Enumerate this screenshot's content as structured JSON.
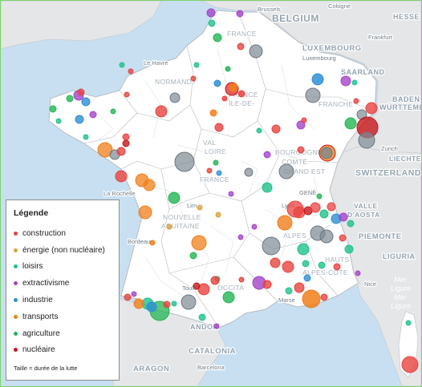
{
  "map": {
    "labels": {
      "countries": [
        {
          "id": "belgium",
          "text": "BELGIUM"
        },
        {
          "id": "luxembourg",
          "text": "LUXEMBOURG"
        },
        {
          "id": "hessen",
          "text": "HESSE"
        },
        {
          "id": "saarland",
          "text": "SAARLAND"
        },
        {
          "id": "baden",
          "text": "BADEN-"
        },
        {
          "id": "wurttemberg",
          "text": "WÜRTTEMBE"
        },
        {
          "id": "switzerland",
          "text": "SWITZERLAND"
        },
        {
          "id": "liechtenstein",
          "text": "LIECHTE"
        },
        {
          "id": "piemonte",
          "text": "PIEMONTE"
        },
        {
          "id": "liguria",
          "text": "LIGURIA"
        },
        {
          "id": "valle",
          "text": "VALLE"
        },
        {
          "id": "aosta",
          "text": "D'AOSTA"
        },
        {
          "id": "catalonia",
          "text": "CATALONIA"
        },
        {
          "id": "aragon",
          "text": "ARAGON"
        },
        {
          "id": "andorra",
          "text": "ANDOR"
        },
        {
          "id": "normandy",
          "text": "NORMANDY"
        },
        {
          "id": "france",
          "text": "FRANCE"
        },
        {
          "id": "nouvelle",
          "text": "NOUVELLE"
        },
        {
          "id": "aquitaine",
          "text": "AQUITAINE"
        },
        {
          "id": "val",
          "text": "VAL"
        },
        {
          "id": "loire",
          "text": "LOIRE"
        },
        {
          "id": "bourgogne",
          "text": "BOURGOGNE"
        },
        {
          "id": "franche",
          "text": "FRANCHE"
        },
        {
          "id": "comte",
          "text": "COMTÉ"
        },
        {
          "id": "grandest",
          "text": "GRAND EST"
        },
        {
          "id": "alpes",
          "text": "ALPES"
        },
        {
          "id": "cote",
          "text": "ALPES-CÔTE"
        },
        {
          "id": "occitanie",
          "text": "OCCITA"
        },
        {
          "id": "francem",
          "text": "FRANCE"
        },
        {
          "id": "ile",
          "text": "ÎLE-DE-"
        },
        {
          "id": "iledf",
          "text": "FRANCE"
        },
        {
          "id": "hauts",
          "text": "HAUTS"
        }
      ],
      "cities": [
        {
          "id": "brussels",
          "text": "Brussels"
        },
        {
          "id": "cologne",
          "text": "Cologne"
        },
        {
          "id": "frankfurt",
          "text": "Frankfurt"
        },
        {
          "id": "luxville",
          "text": "Luxembourg"
        },
        {
          "id": "zurich",
          "text": "Zurich"
        },
        {
          "id": "lehavre",
          "text": "Le Havre"
        },
        {
          "id": "larochelle",
          "text": "La Rochelle"
        },
        {
          "id": "bordeaux",
          "text": "Bordeaux"
        },
        {
          "id": "barcelona",
          "text": "Barcelona"
        },
        {
          "id": "lim",
          "text": "Lim"
        },
        {
          "id": "lyon",
          "text": "Lyon"
        },
        {
          "id": "geneve",
          "text": "GENÈ"
        },
        {
          "id": "toulouse",
          "text": "Toulo"
        },
        {
          "id": "marseille",
          "text": "Marse"
        },
        {
          "id": "nice",
          "text": "Nice"
        },
        {
          "id": "mer",
          "text": "Mer"
        },
        {
          "id": "ligure",
          "text": "Ligure"
        },
        {
          "id": "mer2",
          "text": "Mer"
        },
        {
          "id": "ligure2",
          "text": "Ligure"
        }
      ]
    }
  },
  "legend": {
    "title": "Légende",
    "items": [
      {
        "label": "construction",
        "color": "#e8433f"
      },
      {
        "label": "énergie (non nucléaire)",
        "color": "#d9a23a"
      },
      {
        "label": "loisirs",
        "color": "#1fc28a"
      },
      {
        "label": "extractivisme",
        "color": "#a445c9"
      },
      {
        "label": "industrie",
        "color": "#2f8fd6"
      },
      {
        "label": "transports",
        "color": "#f07f1b"
      },
      {
        "label": "agriculture",
        "color": "#23b553"
      },
      {
        "label": "nucléaire",
        "color": "#c5171a"
      }
    ],
    "note": "Taille = durée de la lutte"
  }
}
